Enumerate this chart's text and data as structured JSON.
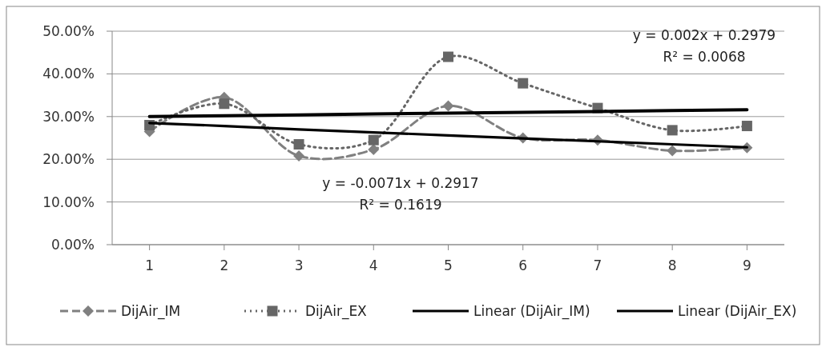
{
  "chart_data": {
    "type": "line",
    "x": [
      1,
      2,
      3,
      4,
      5,
      6,
      7,
      8,
      9
    ],
    "xlim": [
      0.5,
      9.5
    ],
    "xticks": [
      1,
      2,
      3,
      4,
      5,
      6,
      7,
      8,
      9
    ],
    "ylim": [
      0,
      0.5
    ],
    "yticks": [
      {
        "value": 0,
        "label": "0.00%"
      },
      {
        "value": 0.1,
        "label": "10.00%"
      },
      {
        "value": 0.2,
        "label": "20.00%"
      },
      {
        "value": 0.3,
        "label": "30.00%"
      },
      {
        "value": 0.4,
        "label": "40.00%"
      },
      {
        "value": 0.5,
        "label": "50.00%"
      }
    ],
    "grid": "y",
    "legend": "bottom",
    "series": [
      {
        "name": "DijAir_IM",
        "color": "#808080",
        "marker": "diamond",
        "line_style": "dashed",
        "values": [
          0.265,
          0.345,
          0.208,
          0.223,
          0.325,
          0.25,
          0.245,
          0.22,
          0.227
        ]
      },
      {
        "name": "DijAir_EX",
        "color": "#666666",
        "marker": "square",
        "line_style": "dotted",
        "values": [
          0.28,
          0.33,
          0.235,
          0.245,
          0.44,
          0.378,
          0.32,
          0.268,
          0.278
        ]
      },
      {
        "name": "Linear (DijAir_IM)",
        "color": "#000000",
        "marker": "none",
        "line_style": "solid",
        "values": [
          0.285,
          0.278,
          0.27,
          0.263,
          0.256,
          0.249,
          0.242,
          0.235,
          0.228
        ]
      },
      {
        "name": "Linear (DijAir_EX)",
        "color": "#000000",
        "marker": "none",
        "line_style": "solid",
        "values": [
          0.3,
          0.302,
          0.304,
          0.306,
          0.308,
          0.31,
          0.312,
          0.314,
          0.316
        ]
      }
    ],
    "annotations": [
      "y = 0.002x + 0.2979",
      "R² = 0.0068",
      "y = -0.0071x + 0.2917",
      "R² = 0.1619"
    ]
  }
}
